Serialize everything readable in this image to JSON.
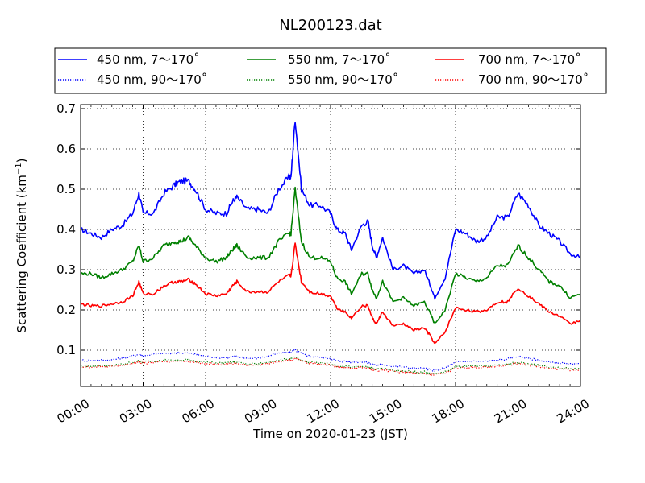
{
  "chart_data": {
    "type": "line",
    "title": "NL200123.dat",
    "xlabel": "Time on 2020-01-23 (JST)",
    "ylabel_main": "Scattering Coefficient (km",
    "ylabel_sup": "−1",
    "ylabel_close": ")",
    "xlim_hours": [
      0,
      24
    ],
    "ylim": [
      0.01,
      0.71
    ],
    "grid": true,
    "legend_placement": "top",
    "xticks": [
      {
        "v": 0,
        "label": "00:00"
      },
      {
        "v": 3,
        "label": "03:00"
      },
      {
        "v": 6,
        "label": "06:00"
      },
      {
        "v": 9,
        "label": "09:00"
      },
      {
        "v": 12,
        "label": "12:00"
      },
      {
        "v": 15,
        "label": "15:00"
      },
      {
        "v": 18,
        "label": "18:00"
      },
      {
        "v": 21,
        "label": "21:00"
      },
      {
        "v": 24,
        "label": "24:00"
      }
    ],
    "yticks": [
      {
        "v": 0.1,
        "label": "0.1"
      },
      {
        "v": 0.2,
        "label": "0.2"
      },
      {
        "v": 0.3,
        "label": "0.3"
      },
      {
        "v": 0.4,
        "label": "0.4"
      },
      {
        "v": 0.5,
        "label": "0.5"
      },
      {
        "v": 0.6,
        "label": "0.6"
      },
      {
        "v": 0.7,
        "label": "0.7"
      }
    ],
    "x_hours": [
      0,
      0.5,
      1,
      1.5,
      2,
      2.5,
      2.8,
      3,
      3.5,
      4,
      4.5,
      4.8,
      5.2,
      5.5,
      6,
      6.5,
      7,
      7.3,
      7.5,
      8,
      8.5,
      9,
      9.5,
      10,
      10.1,
      10.3,
      10.6,
      11,
      11.5,
      12,
      12.3,
      12.7,
      13,
      13.5,
      13.8,
      14,
      14.2,
      14.5,
      15,
      15.5,
      16,
      16.5,
      16.8,
      17,
      17.5,
      18,
      18.5,
      19,
      19.5,
      20,
      20.5,
      21,
      21.5,
      22,
      22.5,
      23,
      23.5,
      24
    ],
    "series": [
      {
        "name": "450 nm, 7～170˚",
        "color": "#0000ff",
        "style": "solid",
        "values": [
          0.4,
          0.39,
          0.38,
          0.4,
          0.41,
          0.44,
          0.49,
          0.44,
          0.44,
          0.49,
          0.51,
          0.52,
          0.52,
          0.5,
          0.45,
          0.44,
          0.44,
          0.47,
          0.48,
          0.45,
          0.45,
          0.44,
          0.5,
          0.53,
          0.53,
          0.675,
          0.5,
          0.46,
          0.46,
          0.44,
          0.4,
          0.39,
          0.35,
          0.41,
          0.42,
          0.36,
          0.33,
          0.38,
          0.3,
          0.31,
          0.29,
          0.3,
          0.26,
          0.23,
          0.28,
          0.4,
          0.39,
          0.37,
          0.38,
          0.43,
          0.43,
          0.49,
          0.46,
          0.41,
          0.39,
          0.37,
          0.34,
          0.33
        ]
      },
      {
        "name": "450 nm, 90～170˚",
        "color": "#0000ff",
        "style": "dotted",
        "values": [
          0.075,
          0.074,
          0.075,
          0.076,
          0.08,
          0.085,
          0.09,
          0.085,
          0.09,
          0.092,
          0.092,
          0.094,
          0.092,
          0.09,
          0.085,
          0.082,
          0.082,
          0.083,
          0.084,
          0.08,
          0.08,
          0.085,
          0.092,
          0.095,
          0.095,
          0.1,
          0.092,
          0.085,
          0.082,
          0.08,
          0.073,
          0.072,
          0.07,
          0.072,
          0.068,
          0.066,
          0.063,
          0.065,
          0.06,
          0.058,
          0.055,
          0.055,
          0.05,
          0.05,
          0.055,
          0.07,
          0.072,
          0.072,
          0.072,
          0.075,
          0.078,
          0.085,
          0.08,
          0.075,
          0.07,
          0.068,
          0.065,
          0.065
        ]
      },
      {
        "name": "550 nm, 7～170˚",
        "color": "#008000",
        "style": "solid",
        "values": [
          0.29,
          0.29,
          0.28,
          0.29,
          0.3,
          0.32,
          0.36,
          0.32,
          0.33,
          0.36,
          0.37,
          0.37,
          0.38,
          0.36,
          0.33,
          0.32,
          0.33,
          0.35,
          0.36,
          0.33,
          0.33,
          0.33,
          0.37,
          0.39,
          0.39,
          0.5,
          0.37,
          0.33,
          0.33,
          0.32,
          0.28,
          0.27,
          0.24,
          0.29,
          0.29,
          0.25,
          0.23,
          0.27,
          0.22,
          0.23,
          0.21,
          0.22,
          0.19,
          0.165,
          0.2,
          0.29,
          0.28,
          0.27,
          0.28,
          0.31,
          0.31,
          0.36,
          0.33,
          0.3,
          0.27,
          0.26,
          0.23,
          0.24
        ]
      },
      {
        "name": "550 nm, 90～170˚",
        "color": "#008000",
        "style": "dotted",
        "values": [
          0.06,
          0.06,
          0.061,
          0.062,
          0.065,
          0.07,
          0.073,
          0.07,
          0.073,
          0.075,
          0.075,
          0.076,
          0.075,
          0.073,
          0.07,
          0.068,
          0.068,
          0.069,
          0.07,
          0.066,
          0.066,
          0.07,
          0.076,
          0.078,
          0.078,
          0.082,
          0.076,
          0.07,
          0.068,
          0.066,
          0.061,
          0.06,
          0.058,
          0.06,
          0.057,
          0.055,
          0.052,
          0.054,
          0.05,
          0.048,
          0.046,
          0.046,
          0.042,
          0.042,
          0.046,
          0.058,
          0.06,
          0.06,
          0.06,
          0.062,
          0.065,
          0.07,
          0.066,
          0.062,
          0.058,
          0.056,
          0.054,
          0.054
        ]
      },
      {
        "name": "700 nm, 7～170˚",
        "color": "#ff0000",
        "style": "solid",
        "values": [
          0.215,
          0.21,
          0.21,
          0.215,
          0.22,
          0.235,
          0.27,
          0.24,
          0.24,
          0.26,
          0.27,
          0.27,
          0.275,
          0.265,
          0.24,
          0.235,
          0.24,
          0.26,
          0.27,
          0.245,
          0.245,
          0.245,
          0.27,
          0.285,
          0.285,
          0.365,
          0.27,
          0.245,
          0.24,
          0.235,
          0.205,
          0.195,
          0.18,
          0.21,
          0.21,
          0.18,
          0.165,
          0.195,
          0.16,
          0.165,
          0.15,
          0.155,
          0.135,
          0.115,
          0.145,
          0.205,
          0.2,
          0.195,
          0.2,
          0.22,
          0.22,
          0.255,
          0.235,
          0.215,
          0.195,
          0.185,
          0.165,
          0.175
        ]
      },
      {
        "name": "700 nm, 90～170˚",
        "color": "#ff0000",
        "style": "dotted",
        "values": [
          0.058,
          0.058,
          0.059,
          0.06,
          0.062,
          0.067,
          0.07,
          0.067,
          0.07,
          0.072,
          0.072,
          0.073,
          0.072,
          0.07,
          0.067,
          0.065,
          0.065,
          0.066,
          0.067,
          0.063,
          0.063,
          0.067,
          0.072,
          0.075,
          0.075,
          0.079,
          0.073,
          0.067,
          0.065,
          0.063,
          0.058,
          0.057,
          0.055,
          0.057,
          0.054,
          0.052,
          0.049,
          0.051,
          0.047,
          0.045,
          0.043,
          0.043,
          0.04,
          0.04,
          0.043,
          0.055,
          0.057,
          0.057,
          0.057,
          0.059,
          0.062,
          0.067,
          0.063,
          0.059,
          0.055,
          0.053,
          0.051,
          0.051
        ]
      }
    ]
  }
}
